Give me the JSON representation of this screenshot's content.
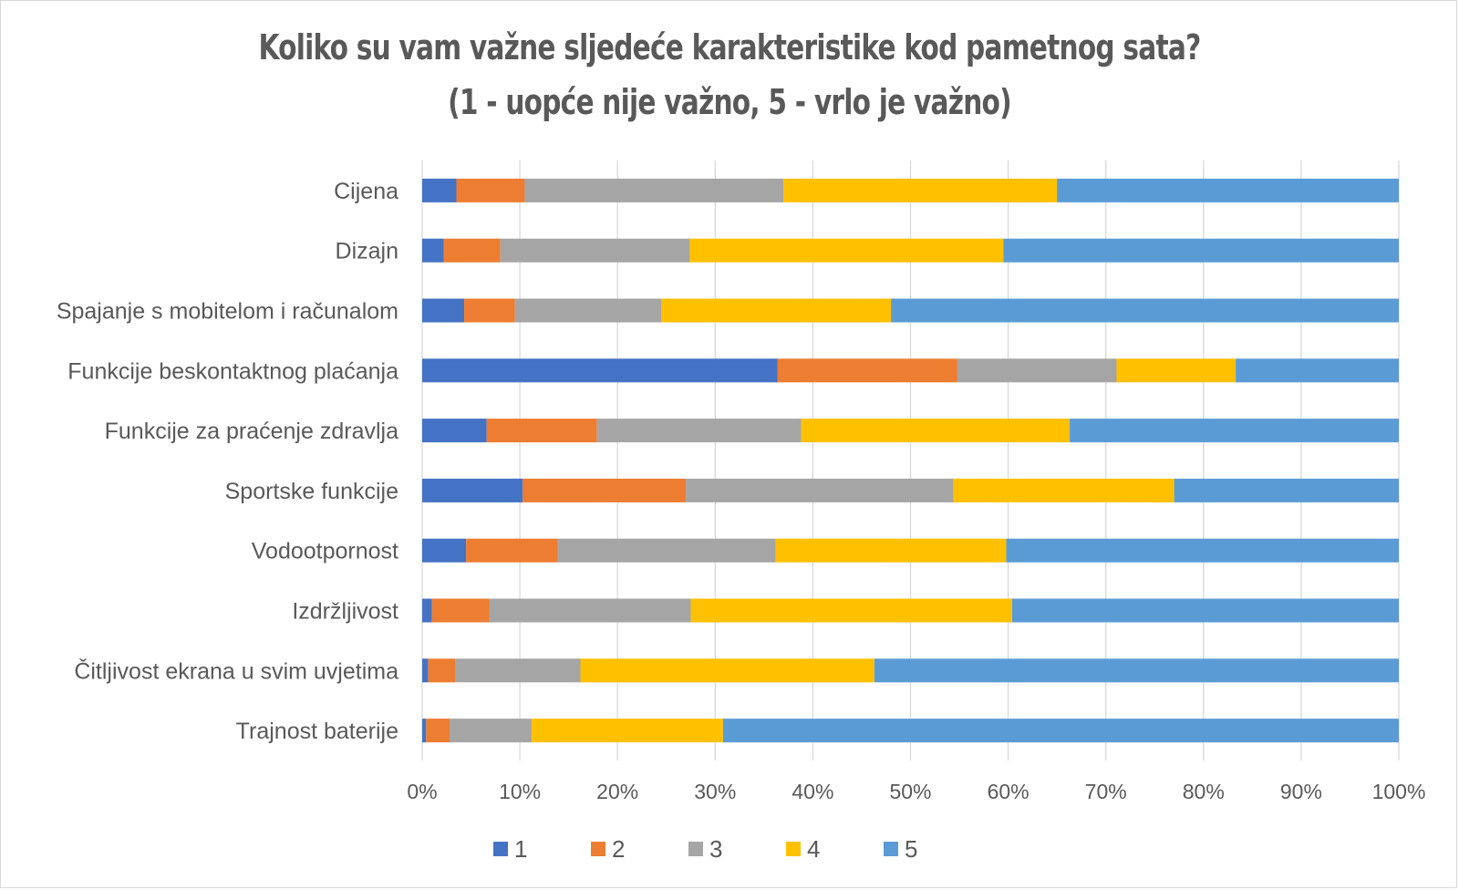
{
  "chart_data": {
    "type": "bar",
    "orientation": "horizontal",
    "stacked": "percent",
    "title": "Koliko su vam važne sljedeće karakteristike kod pametnog sata?",
    "subtitle": "(1 - uopće nije važno, 5 - vrlo je važno)",
    "categories": [
      "Cijena",
      "Dizajn",
      "Spajanje s mobitelom i računalom",
      "Funkcije beskontaktnog plaćanja",
      "Funkcije za praćenje zdravlja",
      "Sportske funkcije",
      "Vodootpornost",
      "Izdržljivost",
      "Čitljivost ekrana u svim uvjetima",
      "Trajnost baterije"
    ],
    "series": [
      {
        "name": "1",
        "color": "#4472C4",
        "values": [
          3.5,
          2.2,
          4.3,
          36.4,
          6.6,
          10.3,
          4.5,
          1.0,
          0.6,
          0.4
        ]
      },
      {
        "name": "2",
        "color": "#ED7D31",
        "values": [
          7.0,
          5.8,
          5.2,
          18.4,
          11.3,
          16.7,
          9.4,
          5.9,
          2.8,
          2.4
        ]
      },
      {
        "name": "3",
        "color": "#A5A5A5",
        "values": [
          26.5,
          19.4,
          15.0,
          16.3,
          20.9,
          27.4,
          22.3,
          20.6,
          12.8,
          8.4
        ]
      },
      {
        "name": "4",
        "color": "#FFC000",
        "values": [
          28.0,
          32.1,
          23.5,
          12.2,
          27.5,
          22.6,
          23.6,
          32.9,
          30.1,
          19.6
        ]
      },
      {
        "name": "5",
        "color": "#5B9BD5",
        "values": [
          35.0,
          40.5,
          52.0,
          16.7,
          33.7,
          23.0,
          40.2,
          39.6,
          53.7,
          69.2
        ]
      }
    ],
    "xlim": [
      0,
      100
    ],
    "x_ticks": [
      "0%",
      "10%",
      "20%",
      "30%",
      "40%",
      "50%",
      "60%",
      "70%",
      "80%",
      "90%",
      "100%"
    ],
    "xlabel": "",
    "ylabel": "",
    "grid": "vertical",
    "legend": "bottom"
  }
}
